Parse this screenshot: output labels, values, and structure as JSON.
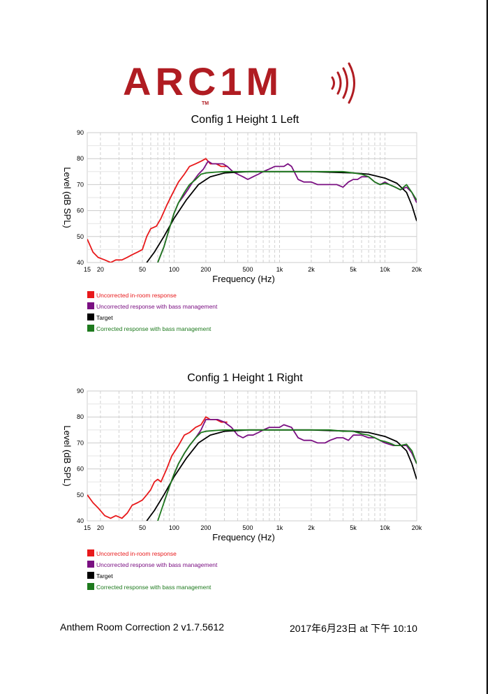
{
  "logo": {
    "text": "ARC1M",
    "trademark": "TM",
    "color": "#b01c22"
  },
  "footer": {
    "app_version": "Anthem Room Correction 2 v1.7.5612",
    "datetime": "2017年6月23日 at 下午 10:10"
  },
  "legend_colors": {
    "uncorrected": "#e8191b",
    "bass_managed": "#7a0f82",
    "target": "#000000",
    "corrected": "#1e7a1e"
  },
  "chart_data": [
    {
      "type": "line",
      "title": "Config 1 Height 1 Left",
      "xlabel": "Frequency (Hz)",
      "ylabel": "Level (dB SPL)",
      "xscale": "log",
      "xlim": [
        15,
        20000
      ],
      "ylim": [
        40,
        90
      ],
      "grid": true,
      "xticks": [
        15,
        20,
        50,
        100,
        200,
        500,
        1000,
        2000,
        5000,
        10000,
        20000
      ],
      "xtick_labels": [
        "15",
        "20",
        "50",
        "100",
        "200",
        "500",
        "1k",
        "2k",
        "5k",
        "10k",
        "20k"
      ],
      "yticks": [
        40,
        50,
        60,
        70,
        80,
        90
      ],
      "ytick_labels": [
        "40",
        "50",
        "60",
        "70",
        "80",
        "90"
      ],
      "legend_position": "bottom-left",
      "series": [
        {
          "name": "Uncorrected in-room response",
          "color": "#e8191b",
          "x": [
            15,
            17,
            19,
            22,
            25,
            28,
            32,
            36,
            40,
            45,
            50,
            55,
            60,
            68,
            75,
            85,
            95,
            110,
            125,
            140,
            160,
            180,
            200,
            220,
            250,
            280,
            320
          ],
          "y": [
            49,
            44,
            42,
            41,
            40,
            41,
            41,
            42,
            43,
            44,
            45,
            50,
            53,
            54,
            57,
            62,
            66,
            71,
            74,
            77,
            78,
            79,
            80,
            78,
            78,
            77,
            77
          ]
        },
        {
          "name": "Uncorrected response with bass management",
          "color": "#7a0f82",
          "x": [
            70,
            80,
            90,
            100,
            110,
            120,
            135,
            150,
            170,
            190,
            210,
            230,
            260,
            290,
            320,
            360,
            400,
            450,
            500,
            560,
            630,
            700,
            800,
            900,
            1000,
            1100,
            1200,
            1300,
            1500,
            1700,
            2000,
            2300,
            2700,
            3000,
            3500,
            4000,
            4500,
            5000,
            5500,
            6000,
            7000,
            8000,
            9000,
            10000,
            11000,
            12500,
            14000,
            16000,
            18000,
            20000
          ],
          "y": [
            40,
            46,
            53,
            59,
            63,
            65,
            68,
            71,
            74,
            76,
            79,
            78,
            78,
            78,
            77,
            75,
            74,
            73,
            72,
            73,
            74,
            75,
            76,
            77,
            77,
            77,
            78,
            77,
            72,
            71,
            71,
            70,
            70,
            70,
            70,
            69,
            71,
            72,
            72,
            73,
            73,
            71,
            70,
            71,
            70,
            69,
            68,
            69,
            67,
            63
          ]
        },
        {
          "name": "Target",
          "color": "#000000",
          "x": [
            55,
            65,
            80,
            100,
            130,
            170,
            220,
            300,
            500,
            1000,
            2000,
            5000,
            7000,
            10000,
            13000,
            16000,
            18000,
            20000
          ],
          "y": [
            40,
            44,
            50,
            57,
            64,
            70,
            73,
            74.5,
            75,
            75,
            75,
            74.5,
            74,
            72.5,
            70.5,
            67,
            62,
            56
          ]
        },
        {
          "name": "Corrected response with bass management",
          "color": "#1e7a1e",
          "x": [
            70,
            80,
            90,
            100,
            110,
            125,
            140,
            160,
            180,
            200,
            250,
            300,
            400,
            500,
            700,
            1000,
            1500,
            2000,
            3000,
            4000,
            5000,
            6000,
            7000,
            8000,
            9000,
            10000,
            11000,
            12500,
            14000,
            16000,
            18000,
            20000
          ],
          "y": [
            40,
            46,
            53,
            59,
            63,
            67,
            70,
            72,
            74,
            74.5,
            74.8,
            75,
            75,
            75,
            75,
            75,
            75,
            75,
            75,
            75,
            74.5,
            74,
            73,
            71,
            70,
            70.5,
            70,
            69,
            68,
            70,
            67,
            64
          ]
        }
      ]
    },
    {
      "type": "line",
      "title": "Config 1 Height 1 Right",
      "xlabel": "Frequency (Hz)",
      "ylabel": "Level (dB SPL)",
      "xscale": "log",
      "xlim": [
        15,
        20000
      ],
      "ylim": [
        40,
        90
      ],
      "grid": true,
      "xticks": [
        15,
        20,
        50,
        100,
        200,
        500,
        1000,
        2000,
        5000,
        10000,
        20000
      ],
      "xtick_labels": [
        "15",
        "20",
        "50",
        "100",
        "200",
        "500",
        "1k",
        "2k",
        "5k",
        "10k",
        "20k"
      ],
      "yticks": [
        40,
        50,
        60,
        70,
        80,
        90
      ],
      "ytick_labels": [
        "40",
        "50",
        "60",
        "70",
        "80",
        "90"
      ],
      "legend_position": "bottom-left",
      "series": [
        {
          "name": "Uncorrected in-room response",
          "color": "#e8191b",
          "x": [
            15,
            17,
            19,
            22,
            25,
            28,
            32,
            36,
            40,
            45,
            50,
            55,
            60,
            65,
            70,
            75,
            85,
            95,
            110,
            125,
            140,
            160,
            180,
            200,
            220,
            250,
            280,
            320
          ],
          "y": [
            50,
            47,
            45,
            42,
            41,
            42,
            41,
            43,
            46,
            47,
            48,
            50,
            52,
            55,
            56,
            55,
            60,
            65,
            69,
            73,
            74,
            76,
            77,
            80,
            79,
            79,
            78,
            78
          ]
        },
        {
          "name": "Uncorrected response with bass management",
          "color": "#7a0f82",
          "x": [
            80,
            90,
            100,
            110,
            125,
            140,
            160,
            180,
            200,
            230,
            260,
            300,
            350,
            400,
            450,
            500,
            560,
            630,
            700,
            800,
            900,
            1000,
            1100,
            1300,
            1500,
            1700,
            2000,
            2300,
            2700,
            3000,
            3500,
            4000,
            4500,
            5000,
            6000,
            7000,
            8000,
            10000,
            12000,
            14000,
            16000,
            18000,
            20000
          ],
          "y": [
            47,
            53,
            58,
            62,
            66,
            69,
            72,
            75,
            79,
            79,
            79,
            78,
            76,
            73,
            72,
            73,
            73,
            74,
            75,
            76,
            76,
            76,
            77,
            76,
            72,
            71,
            71,
            70,
            70,
            71,
            72,
            72,
            71,
            73,
            73,
            72,
            72,
            70,
            69,
            69,
            69,
            66,
            62
          ]
        },
        {
          "name": "Target",
          "color": "#000000",
          "x": [
            55,
            65,
            80,
            100,
            130,
            170,
            220,
            300,
            500,
            1000,
            2000,
            5000,
            7000,
            10000,
            13000,
            16000,
            18000,
            20000
          ],
          "y": [
            40,
            44,
            50,
            57,
            64,
            70,
            73,
            74.5,
            75,
            75,
            75,
            74.5,
            74,
            72.5,
            70.5,
            67,
            62,
            56
          ]
        },
        {
          "name": "Corrected response with bass management",
          "color": "#1e7a1e",
          "x": [
            70,
            80,
            90,
            100,
            110,
            125,
            140,
            160,
            180,
            200,
            250,
            300,
            400,
            500,
            700,
            1000,
            1500,
            2000,
            3000,
            4000,
            5000,
            6000,
            7000,
            8000,
            9000,
            10000,
            11000,
            12500,
            14000,
            16000,
            18000,
            20000
          ],
          "y": [
            40,
            47,
            53,
            58,
            62,
            66,
            69,
            72,
            74,
            74.5,
            74.8,
            75,
            75,
            75,
            75,
            75,
            75,
            75,
            75,
            74.5,
            74.5,
            73.5,
            73,
            72,
            71,
            70.5,
            70,
            69,
            69,
            69.5,
            67,
            62
          ]
        }
      ]
    }
  ]
}
